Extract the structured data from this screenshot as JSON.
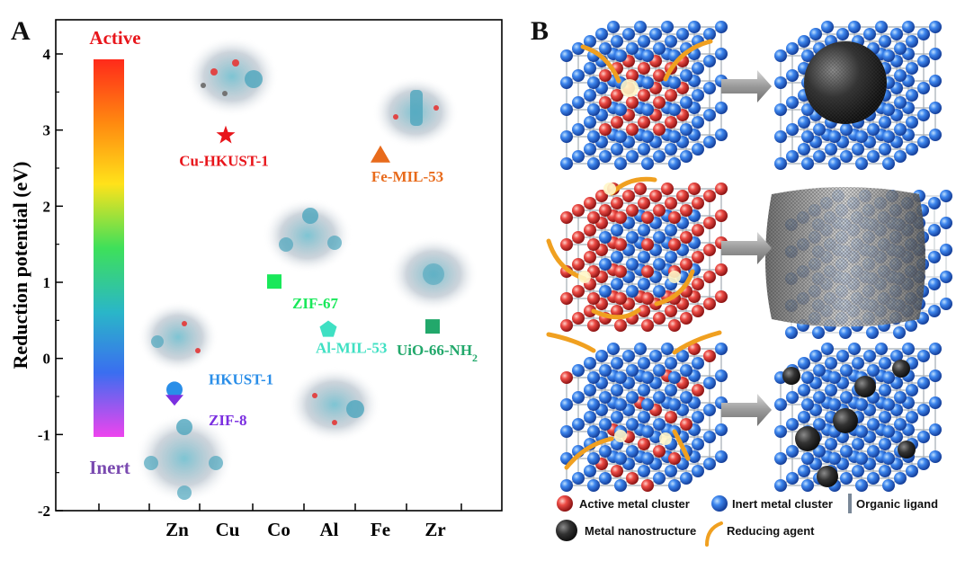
{
  "panel_a": {
    "letter": "A",
    "chart_data": {
      "type": "scatter",
      "ylabel": "Reduction potential (eV)",
      "xlabel": "",
      "categories": [
        "Zn",
        "Cu",
        "Co",
        "Al",
        "Fe",
        "Zr"
      ],
      "ylim": [
        -2,
        4.5
      ],
      "yticks": [
        -2,
        -1,
        0,
        1,
        2,
        3,
        4
      ],
      "colorbar": {
        "top_label": "Active",
        "bottom_label": "Inert",
        "range": [
          -1,
          3.9
        ]
      },
      "points": [
        {
          "name": "Cu-HKUST-1",
          "category": "Cu",
          "y": 2.93,
          "marker": "star",
          "color": "#e8151b",
          "label_color": "#e8151b"
        },
        {
          "name": "Fe-MIL-53",
          "category": "Fe",
          "y": 2.68,
          "marker": "triangle",
          "color": "#e86b1c",
          "label_color": "#e86b1c"
        },
        {
          "name": "ZIF-67",
          "category": "Co",
          "y": 1.01,
          "marker": "square",
          "color": "#19e85a",
          "label_color": "#19e85a"
        },
        {
          "name": "Al-MIL-53",
          "category": "Al",
          "y": 0.38,
          "marker": "pentagon",
          "color": "#3fe0c3",
          "label_color": "#3fe0c3"
        },
        {
          "name": "UiO-66-NH",
          "sub": "2",
          "category": "Zr",
          "y": 0.42,
          "marker": "square",
          "color": "#22a86b",
          "label_color": "#22a86b"
        },
        {
          "name": "HKUST-1",
          "category": "Zn",
          "y": -0.41,
          "marker": "circle",
          "color": "#2a8ee8",
          "label_color": "#2a8ee8"
        },
        {
          "name": "ZIF-8",
          "category": "Zn",
          "y": -0.55,
          "marker": "diamond",
          "color": "#7b2fe0",
          "label_color": "#7b2fe0"
        }
      ]
    }
  },
  "panel_b": {
    "letter": "B",
    "legend": {
      "active": "Active metal cluster",
      "inert": "Inert metal cluster",
      "ligand": "Organic ligand",
      "nano": "Metal nanostructure",
      "reducer": "Reducing agent"
    },
    "colors": {
      "active": "#e8433f",
      "inert": "#2f7be0",
      "nano": "#2b2b2b",
      "arrow": "#f0a020"
    }
  }
}
